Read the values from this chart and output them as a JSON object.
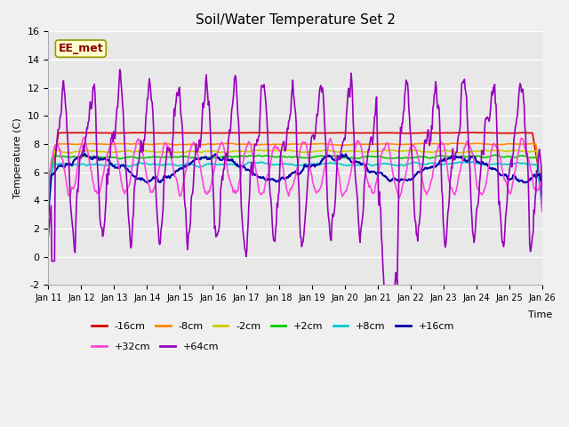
{
  "title": "Soil/Water Temperature Set 2",
  "xlabel": "Time",
  "ylabel": "Temperature (C)",
  "ylim": [
    -2,
    16
  ],
  "yticks": [
    -2,
    0,
    2,
    4,
    6,
    8,
    10,
    12,
    14,
    16
  ],
  "x_tick_labels": [
    "Jan 11",
    "Jan 12",
    "Jan 13",
    "Jan 14",
    "Jan 15",
    "Jan 16",
    "Jan 17",
    "Jan 18",
    "Jan 19",
    "Jan 20",
    "Jan 21",
    "Jan 22",
    "Jan 23",
    "Jan 24",
    "Jan 25",
    "Jan 26"
  ],
  "annotation_text": "EE_met",
  "bg_color": "#e8e8e8",
  "fig_bg": "#f0f0f0",
  "legend_order": [
    "-16cm",
    "-8cm",
    "-2cm",
    "+2cm",
    "+8cm",
    "+16cm",
    "+32cm",
    "+64cm"
  ],
  "colors": {
    "-16cm": "#dd0000",
    "-8cm": "#ff8800",
    "-2cm": "#cccc00",
    "+2cm": "#00cc00",
    "+8cm": "#00cccc",
    "+16cm": "#0000aa",
    "+32cm": "#ff44dd",
    "+64cm": "#9900bb"
  }
}
